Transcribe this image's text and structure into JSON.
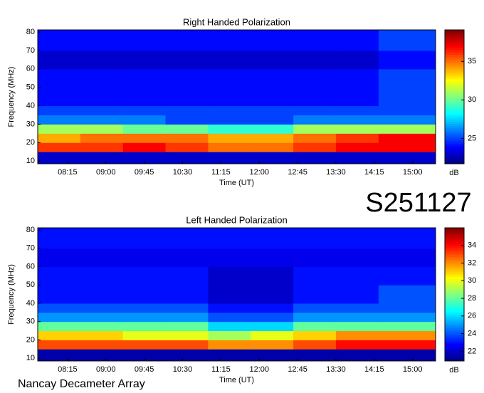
{
  "title": "S251127",
  "footer": "Nancay Decameter Array",
  "chart_data": [
    {
      "type": "heatmap",
      "title": "Right Handed Polarization",
      "xlabel": "Time (UT)",
      "ylabel": "Frequency (MHz)",
      "colorbar_label": "dB",
      "colormap": "jet",
      "xlim": [
        "07:40",
        "15:27"
      ],
      "ylim": [
        8.5,
        81.2
      ],
      "xticks": [
        "08:15",
        "09:00",
        "09:45",
        "10:30",
        "11:15",
        "12:00",
        "12:45",
        "13:30",
        "14:15",
        "15:00"
      ],
      "yticks": [
        10,
        20,
        30,
        40,
        50,
        60,
        70,
        80
      ],
      "clim": [
        21.7,
        39.1
      ],
      "cticks": [
        25,
        30,
        35
      ],
      "x_edges": [
        "07:40",
        "08:30",
        "09:20",
        "10:10",
        "11:00",
        "11:50",
        "12:40",
        "13:30",
        "14:20",
        "15:27"
      ],
      "y_edges": [
        8.5,
        15,
        20,
        25,
        30,
        35,
        40,
        50,
        60,
        70,
        81.2
      ],
      "z": [
        [
          23,
          23,
          23,
          23,
          23,
          23,
          23,
          23,
          23
        ],
        [
          36,
          36,
          37,
          36,
          35,
          35,
          36,
          37,
          37
        ],
        [
          34,
          35,
          35,
          35,
          34,
          34,
          35,
          36,
          37
        ],
        [
          31,
          31,
          30,
          30,
          29,
          29,
          31,
          31,
          31
        ],
        [
          26,
          26,
          26,
          25,
          25,
          25,
          26,
          26,
          26
        ],
        [
          25,
          25,
          25,
          25,
          25,
          25,
          25,
          25,
          25
        ],
        [
          24,
          24,
          24,
          24,
          24,
          24,
          24,
          24,
          25
        ],
        [
          24,
          24,
          24,
          24,
          24,
          24,
          24,
          24,
          25
        ],
        [
          23,
          23,
          23,
          23,
          23,
          23,
          23,
          23,
          24
        ],
        [
          24,
          24,
          24,
          24,
          24,
          24,
          24,
          24,
          25
        ]
      ]
    },
    {
      "type": "heatmap",
      "title": "Left Handed Polarization",
      "xlabel": "Time (UT)",
      "ylabel": "Frequency (MHz)",
      "colorbar_label": "dB",
      "colormap": "jet",
      "xlim": [
        "07:40",
        "15:27"
      ],
      "ylim": [
        8.5,
        81.2
      ],
      "xticks": [
        "08:15",
        "09:00",
        "09:45",
        "10:30",
        "11:15",
        "12:00",
        "12:45",
        "13:30",
        "14:15",
        "15:00"
      ],
      "yticks": [
        10,
        20,
        30,
        40,
        50,
        60,
        70,
        80
      ],
      "clim": [
        20.9,
        36
      ],
      "cticks": [
        22,
        24,
        26,
        28,
        30,
        32,
        34
      ],
      "x_edges": [
        "07:40",
        "08:30",
        "09:20",
        "10:10",
        "11:00",
        "11:50",
        "12:40",
        "13:30",
        "14:20",
        "15:27"
      ],
      "y_edges": [
        8.5,
        15,
        20,
        25,
        30,
        35,
        40,
        50,
        60,
        70,
        81.2
      ],
      "z": [
        [
          21.5,
          21.5,
          21.5,
          21.5,
          21.5,
          21.5,
          21.5,
          21.5,
          21.5
        ],
        [
          33,
          33,
          33,
          33,
          32,
          32,
          33,
          34,
          34
        ],
        [
          31,
          31,
          30,
          30,
          29,
          30,
          31,
          32,
          32
        ],
        [
          28,
          28,
          28,
          28,
          26,
          26,
          28,
          28,
          28
        ],
        [
          25,
          25,
          25,
          25,
          24,
          24,
          25,
          25,
          25
        ],
        [
          24,
          24,
          24,
          24,
          23,
          23,
          24,
          24,
          24
        ],
        [
          23,
          23,
          23,
          23,
          22,
          22,
          23,
          23,
          24
        ],
        [
          23,
          23,
          23,
          23,
          22,
          22,
          23,
          23,
          23
        ],
        [
          22.5,
          22.5,
          22.5,
          22.5,
          22.5,
          22.5,
          22.5,
          22.5,
          22.5
        ],
        [
          23,
          23,
          23,
          23,
          23,
          23,
          23,
          23,
          23
        ]
      ]
    }
  ]
}
